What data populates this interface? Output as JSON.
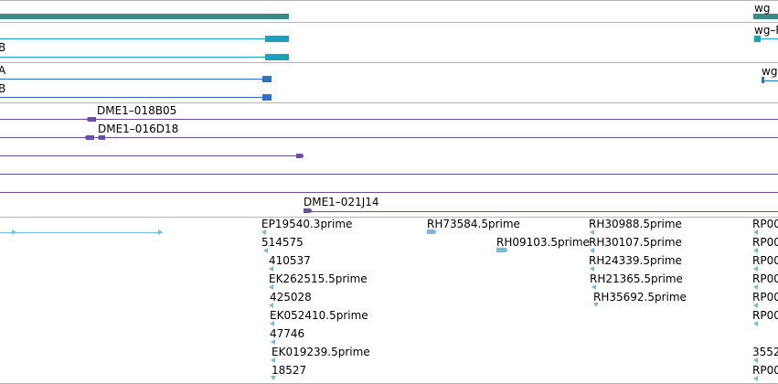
{
  "colors": {
    "gene": "#3a8a88",
    "transcript_a": "#1aa2b8",
    "transcript_b": "#2d6fc9",
    "clone": "#6b4fa3",
    "est": "#7ab9dc",
    "separator": "#b5b5b5"
  },
  "gene_track": {
    "label": "wg"
  },
  "transcripts": [
    {
      "label_left": "B",
      "label_right": "wg–R"
    },
    {
      "label_right": "wg–"
    },
    {
      "label_left": "A"
    },
    {
      "label_left": "B"
    }
  ],
  "clones": [
    {
      "label": "DME1–018B05"
    },
    {
      "label": "DME1–016D18"
    },
    {
      "label": "DME1–021J14"
    }
  ],
  "est_labels": {
    "col1": [
      "EP19540.3prime",
      "514575",
      "410537",
      "EK262515.5prime",
      "425028",
      "EK052410.5prime",
      "47746",
      "EK019239.5prime",
      "18527"
    ],
    "col2": [
      "RH73584.5prime",
      "RH09103.5prime"
    ],
    "col3": [
      "RH30988.5prime",
      "RH30107.5prime",
      "RH24339.5prime",
      "RH21365.5prime",
      "RH35692.5prime"
    ],
    "col4": [
      "RP00",
      "RP00",
      "RP00",
      "RP00",
      "RP00",
      "RP00",
      "3552",
      "RP00"
    ]
  }
}
